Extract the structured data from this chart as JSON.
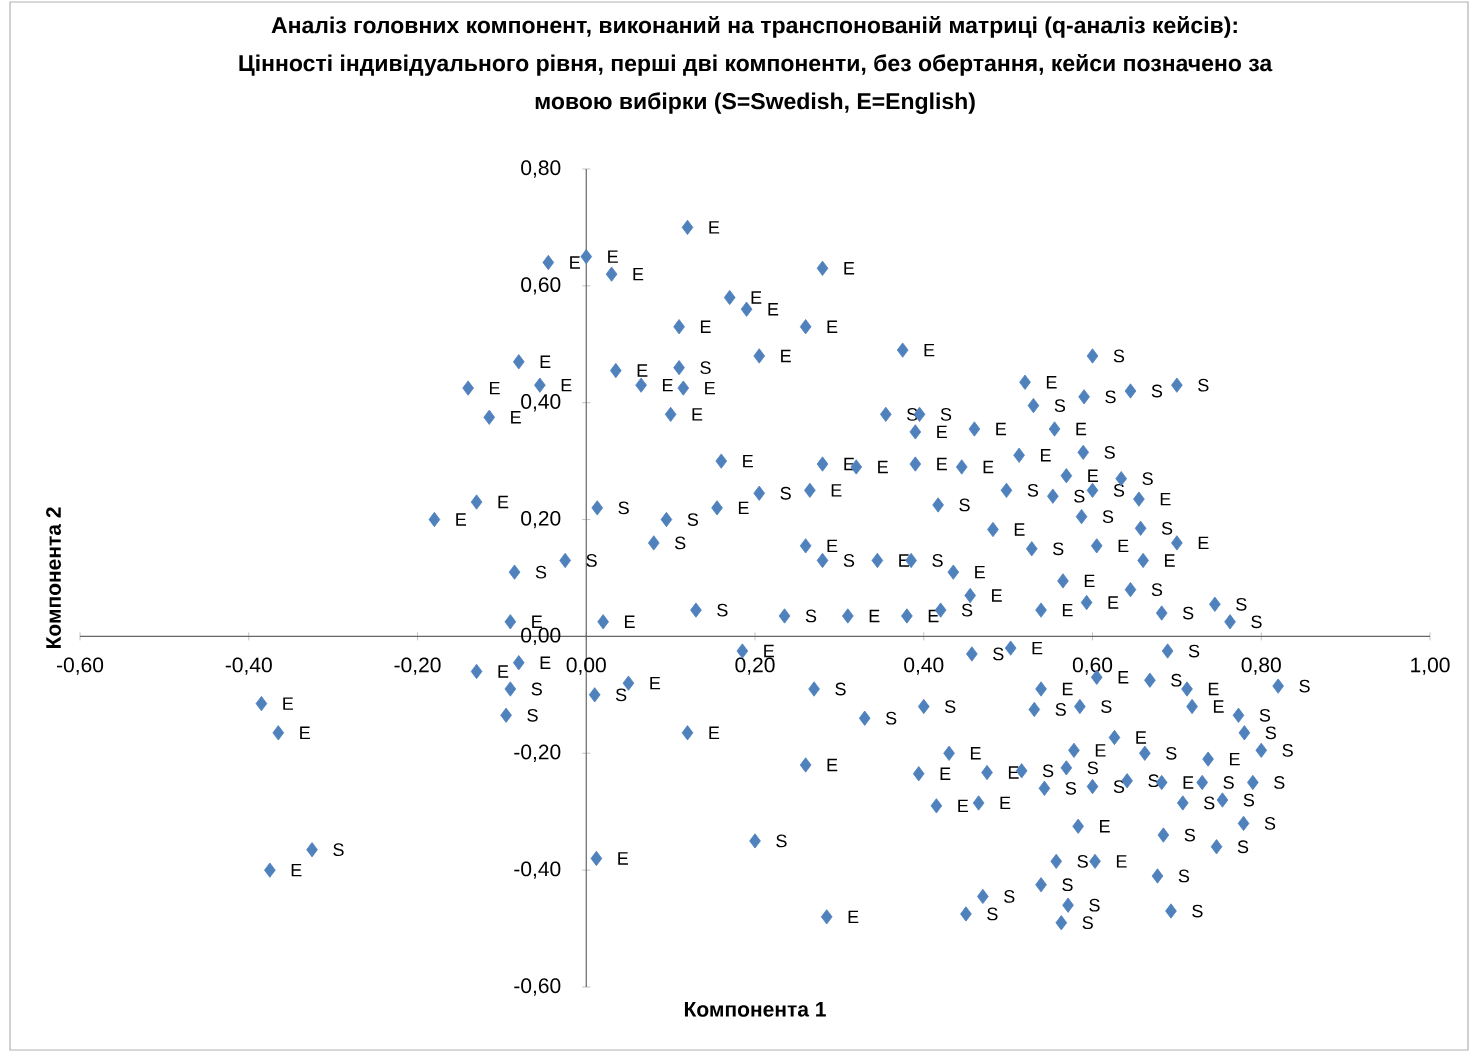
{
  "chart_data": {
    "type": "scatter",
    "title": "Аналіз головних компонент, виконаний на транспонованій матриці (q-аналіз кейсів):\nЦінності індивідуального рівня, перші дві компоненти, без обертання, кейси позначено за\nмовою вибірки (S=Swedish, E=English)",
    "xlabel": "Компонента 1",
    "ylabel": "Компонента 2",
    "color": "#4f81bd",
    "marker": "diamond",
    "xlim": [
      -0.6,
      1.0
    ],
    "ylim": [
      -0.6,
      0.8
    ],
    "xticks": [
      {
        "value": -0.6,
        "label": "-0,60"
      },
      {
        "value": -0.4,
        "label": "-0,40"
      },
      {
        "value": -0.2,
        "label": "-0,20"
      },
      {
        "value": 0,
        "label": "0,00"
      },
      {
        "value": 0.2,
        "label": "0,20"
      },
      {
        "value": 0.4,
        "label": "0,40"
      },
      {
        "value": 0.6,
        "label": "0,60"
      },
      {
        "value": 0.8,
        "label": "0,80"
      },
      {
        "value": 1.0,
        "label": "1,00"
      }
    ],
    "yticks": [
      {
        "value": -0.6,
        "label": "-0,60"
      },
      {
        "value": -0.4,
        "label": "-0,40"
      },
      {
        "value": -0.2,
        "label": "-0,20"
      },
      {
        "value": 0,
        "label": "0,00"
      },
      {
        "value": 0.2,
        "label": "0,20"
      },
      {
        "value": 0.4,
        "label": "0,40"
      },
      {
        "value": 0.6,
        "label": "0,60"
      },
      {
        "value": 0.8,
        "label": "0,80"
      }
    ],
    "x": [
      0.12,
      -0.045,
      0.0,
      0.03,
      0.17,
      0.19,
      0.28,
      0.11,
      0.26,
      0.375,
      0.205,
      -0.08,
      -0.14,
      -0.055,
      -0.115,
      0.035,
      0.065,
      0.11,
      0.115,
      0.1,
      0.16,
      0.155,
      0.205,
      0.265,
      0.28,
      0.32,
      0.355,
      0.395,
      0.013,
      -0.13,
      -0.18,
      0.095,
      0.08,
      0.26,
      0.28,
      0.345,
      0.385,
      0.435,
      -0.085,
      -0.025,
      0.13,
      0.235,
      0.31,
      0.38,
      -0.09,
      0.02,
      0.185,
      -0.08,
      -0.13,
      -0.09,
      0.05,
      0.01,
      -0.095,
      -0.385,
      -0.365,
      0.12,
      0.27,
      0.33,
      0.4,
      0.26,
      0.2,
      0.012,
      -0.325,
      -0.375,
      0.285,
      0.45,
      0.47,
      0.415,
      0.465,
      0.394,
      0.43,
      0.475,
      0.457,
      0.503,
      0.455,
      0.42,
      0.6,
      0.52,
      0.645,
      0.7,
      0.59,
      0.53,
      0.39,
      0.46,
      0.555,
      0.589,
      0.513,
      0.39,
      0.445,
      0.569,
      0.634,
      0.498,
      0.553,
      0.6,
      0.655,
      0.417,
      0.587,
      0.482,
      0.657,
      0.528,
      0.605,
      0.7,
      0.66,
      0.565,
      0.645,
      0.539,
      0.593,
      0.682,
      0.745,
      0.763,
      0.689,
      0.605,
      0.539,
      0.668,
      0.712,
      0.82,
      0.531,
      0.585,
      0.718,
      0.773,
      0.78,
      0.8,
      0.578,
      0.626,
      0.662,
      0.737,
      0.569,
      0.516,
      0.543,
      0.6,
      0.641,
      0.682,
      0.73,
      0.79,
      0.754,
      0.707,
      0.583,
      0.603,
      0.557,
      0.684,
      0.747,
      0.779,
      0.677,
      0.693,
      0.539,
      0.571,
      0.563
    ],
    "values": [
      0.7,
      0.64,
      0.65,
      0.62,
      0.58,
      0.56,
      0.63,
      0.53,
      0.53,
      0.49,
      0.48,
      0.47,
      0.425,
      0.43,
      0.375,
      0.455,
      0.43,
      0.46,
      0.425,
      0.38,
      0.3,
      0.22,
      0.245,
      0.25,
      0.295,
      0.29,
      0.38,
      0.38,
      0.22,
      0.23,
      0.2,
      0.2,
      0.16,
      0.155,
      0.13,
      0.13,
      0.13,
      0.11,
      0.11,
      0.13,
      0.045,
      0.035,
      0.035,
      0.035,
      0.025,
      0.025,
      -0.025,
      -0.045,
      -0.06,
      -0.09,
      -0.08,
      -0.1,
      -0.135,
      -0.115,
      -0.165,
      -0.165,
      -0.09,
      -0.14,
      -0.12,
      -0.22,
      -0.35,
      -0.38,
      -0.365,
      -0.4,
      -0.48,
      -0.475,
      -0.445,
      -0.29,
      -0.285,
      -0.235,
      -0.2,
      -0.233,
      -0.03,
      -0.02,
      0.07,
      0.045,
      0.48,
      0.435,
      0.42,
      0.43,
      0.41,
      0.395,
      0.35,
      0.355,
      0.355,
      0.315,
      0.31,
      0.295,
      0.29,
      0.275,
      0.27,
      0.25,
      0.24,
      0.25,
      0.235,
      0.225,
      0.205,
      0.183,
      0.185,
      0.15,
      0.155,
      0.16,
      0.13,
      0.095,
      0.08,
      0.045,
      0.058,
      0.04,
      0.055,
      0.025,
      -0.025,
      -0.07,
      -0.09,
      -0.075,
      -0.09,
      -0.085,
      -0.125,
      -0.12,
      -0.12,
      -0.135,
      -0.165,
      -0.195,
      -0.195,
      -0.173,
      -0.2,
      -0.21,
      -0.225,
      -0.23,
      -0.26,
      -0.257,
      -0.247,
      -0.25,
      -0.25,
      -0.25,
      -0.28,
      -0.285,
      -0.325,
      -0.385,
      -0.385,
      -0.34,
      -0.36,
      -0.32,
      -0.41,
      -0.47,
      -0.425,
      -0.46,
      -0.49
    ],
    "value_labels": [
      "E",
      "E",
      "E",
      "E",
      "E",
      "E",
      "E",
      "E",
      "E",
      "E",
      "E",
      "E",
      "E",
      "E",
      "E",
      "E",
      "E",
      "S",
      "E",
      "E",
      "E",
      "E",
      "S",
      "E",
      "E",
      "E",
      "S",
      "S",
      "S",
      "E",
      "E",
      "S",
      "S",
      "E",
      "S",
      "E",
      "S",
      "E",
      "S",
      "S",
      "S",
      "S",
      "E",
      "E",
      "E",
      "E",
      "E",
      "E",
      "E",
      "S",
      "E",
      "S",
      "S",
      "E",
      "E",
      "E",
      "S",
      "S",
      "S",
      "E",
      "S",
      "E",
      "S",
      "E",
      "E",
      "S",
      "S",
      "E",
      "E",
      "E",
      "E",
      "E",
      "S",
      "E",
      "E",
      "S",
      "S",
      "E",
      "S",
      "S",
      "S",
      "S",
      "E",
      "E",
      "E",
      "S",
      "E",
      "E",
      "E",
      "E",
      "S",
      "S",
      "S",
      "S",
      "E",
      "S",
      "S",
      "E",
      "S",
      "S",
      "E",
      "E",
      "E",
      "E",
      "S",
      "E",
      "E",
      "S",
      "S",
      "S",
      "S",
      "E",
      "E",
      "S",
      "E",
      "S",
      "S",
      "S",
      "E",
      "S",
      "S",
      "S",
      "E",
      "E",
      "S",
      "E",
      "S",
      "S",
      "S",
      "S",
      "S",
      "E",
      "S",
      "S",
      "S",
      "S",
      "E",
      "E",
      "S",
      "S",
      "S",
      "S",
      "S",
      "S",
      "S",
      "S",
      "S"
    ]
  }
}
